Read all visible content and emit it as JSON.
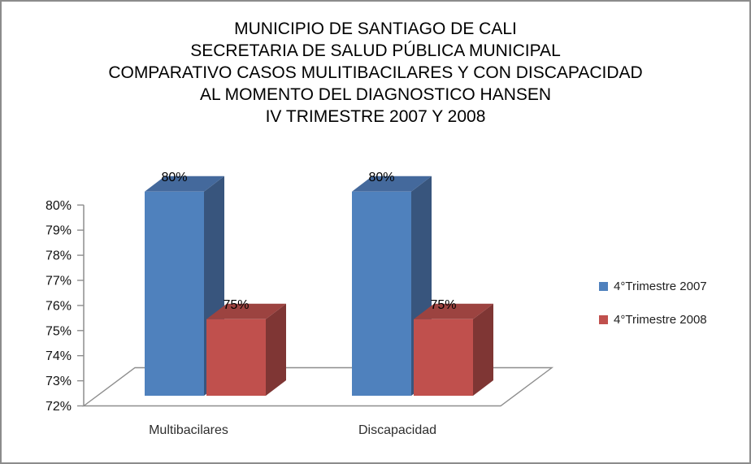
{
  "page": {
    "background": "#FFFFFF",
    "border_color": "#8C8C8C"
  },
  "chart_data": {
    "type": "bar",
    "subtype": "3d-clustered-column",
    "title_lines": [
      "MUNICIPIO DE SANTIAGO DE CALI",
      "SECRETARIA DE SALUD PÚBLICA MUNICIPAL",
      "COMPARATIVO CASOS MULITIBACILARES Y CON DISCAPACIDAD",
      "AL MOMENTO DEL DIAGNOSTICO HANSEN",
      "IV TRIMESTRE 2007 Y 2008"
    ],
    "categories": [
      "Multibacilares",
      "Discapacidad"
    ],
    "series": [
      {
        "name": "4°Trimestre 2007",
        "values": [
          80,
          80
        ],
        "value_labels": [
          "80%",
          "80%"
        ],
        "color": "#4F81BD",
        "color_top": "#44699C",
        "color_side": "#38557D"
      },
      {
        "name": "4°Trimestre 2008",
        "values": [
          75,
          75
        ],
        "value_labels": [
          "75%",
          "75%"
        ],
        "color": "#C0504D",
        "color_top": "#9C4340",
        "color_side": "#7F3634"
      }
    ],
    "xlabel": "",
    "ylabel": "",
    "ylim": [
      72,
      80
    ],
    "ytick_step": 1,
    "ytick_labels": [
      "72%",
      "73%",
      "74%",
      "75%",
      "76%",
      "77%",
      "78%",
      "79%",
      "80%"
    ],
    "value_suffix": "%",
    "data_labels": true,
    "gridlines": false,
    "legend_position": "right",
    "axis_color": "#8E8E8E",
    "tick_text_color": "#111111",
    "data_label_color": "#000000"
  }
}
